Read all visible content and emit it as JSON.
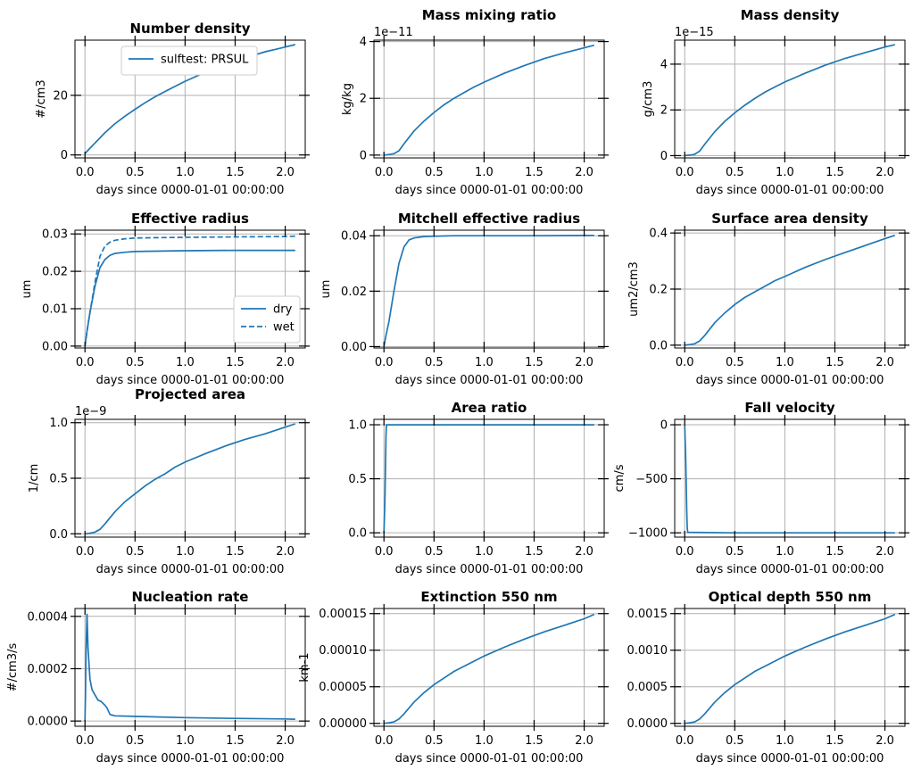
{
  "figure": {
    "line_color": "#1f77b4"
  },
  "chart_data": [
    {
      "type": "line",
      "title": "Number density",
      "xlabel": "days since 0000-01-01 00:00:00",
      "ylabel": "#/cm3",
      "xlim": [
        -0.1,
        2.2
      ],
      "ylim": [
        -1,
        38.5
      ],
      "xticks": [
        "0.0",
        "0.5",
        "1.0",
        "1.5",
        "2.0"
      ],
      "yticks": [
        0,
        20
      ],
      "ytick_labels": [
        "0",
        "20"
      ],
      "offset": "",
      "legend": {
        "placement": "top-center",
        "entries": [
          "sulftest: PRSUL"
        ]
      },
      "series": [
        {
          "name": "sulftest: PRSUL",
          "style": "solid",
          "x": [
            0,
            0.1,
            0.2,
            0.3,
            0.4,
            0.5,
            0.6,
            0.7,
            0.8,
            0.9,
            1.0,
            1.1,
            1.2,
            1.3,
            1.4,
            1.5,
            1.6,
            1.7,
            1.8,
            1.9,
            2.0,
            2.1
          ],
          "y": [
            0.5,
            4,
            7.5,
            10.5,
            13,
            15.3,
            17.5,
            19.5,
            21.3,
            23,
            24.7,
            26.2,
            27.7,
            29,
            30.3,
            31.5,
            32.6,
            33.6,
            34.6,
            35.4,
            36.2,
            37
          ]
        }
      ]
    },
    {
      "type": "line",
      "title": "Mass mixing ratio",
      "xlabel": "days since 0000-01-01 00:00:00",
      "ylabel": "kg/kg",
      "xlim": [
        -0.1,
        2.2
      ],
      "ylim": [
        -0.1,
        4.05
      ],
      "xticks": [
        "0.0",
        "0.5",
        "1.0",
        "1.5",
        "2.0"
      ],
      "yticks": [
        0,
        2,
        4
      ],
      "ytick_labels": [
        "0",
        "2",
        "4"
      ],
      "offset": "1e−11",
      "series": [
        {
          "name": "",
          "style": "solid",
          "x": [
            0,
            0.05,
            0.1,
            0.15,
            0.2,
            0.3,
            0.4,
            0.5,
            0.6,
            0.7,
            0.8,
            0.9,
            1.0,
            1.2,
            1.4,
            1.6,
            1.8,
            2.0,
            2.1
          ],
          "y": [
            0,
            0.02,
            0.05,
            0.15,
            0.4,
            0.85,
            1.2,
            1.5,
            1.77,
            2.0,
            2.2,
            2.4,
            2.57,
            2.88,
            3.15,
            3.4,
            3.6,
            3.78,
            3.87
          ]
        }
      ]
    },
    {
      "type": "line",
      "title": "Mass density",
      "xlabel": "days since 0000-01-01 00:00:00",
      "ylabel": "g/cm3",
      "xlim": [
        -0.1,
        2.2
      ],
      "ylim": [
        -0.1,
        5.05
      ],
      "xticks": [
        "0.0",
        "0.5",
        "1.0",
        "1.5",
        "2.0"
      ],
      "yticks": [
        0,
        2,
        4
      ],
      "ytick_labels": [
        "0",
        "2",
        "4"
      ],
      "offset": "1e−15",
      "series": [
        {
          "name": "",
          "style": "solid",
          "x": [
            0,
            0.05,
            0.1,
            0.15,
            0.2,
            0.3,
            0.4,
            0.5,
            0.6,
            0.7,
            0.8,
            0.9,
            1.0,
            1.2,
            1.4,
            1.6,
            1.8,
            2.0,
            2.1
          ],
          "y": [
            0,
            0.02,
            0.06,
            0.2,
            0.5,
            1.05,
            1.5,
            1.87,
            2.2,
            2.5,
            2.77,
            3.0,
            3.22,
            3.6,
            3.95,
            4.25,
            4.5,
            4.75,
            4.85
          ]
        }
      ]
    },
    {
      "type": "line",
      "title": "Effective radius",
      "xlabel": "days since 0000-01-01 00:00:00",
      "ylabel": "um",
      "xlim": [
        -0.1,
        2.2
      ],
      "ylim": [
        -0.0005,
        0.031
      ],
      "xticks": [
        "0.0",
        "0.5",
        "1.0",
        "1.5",
        "2.0"
      ],
      "yticks": [
        0,
        0.01,
        0.02,
        0.03
      ],
      "ytick_labels": [
        "0.00",
        "0.01",
        "0.02",
        "0.03"
      ],
      "offset": "",
      "legend": {
        "placement": "lower-right",
        "entries": [
          "dry",
          "wet"
        ]
      },
      "series": [
        {
          "name": "dry",
          "style": "solid",
          "x": [
            0,
            0.02,
            0.05,
            0.1,
            0.15,
            0.2,
            0.25,
            0.3,
            0.4,
            0.5,
            0.7,
            1.0,
            1.5,
            2.0,
            2.1
          ],
          "y": [
            0,
            0.004,
            0.009,
            0.016,
            0.021,
            0.0232,
            0.0243,
            0.0248,
            0.0251,
            0.0253,
            0.0254,
            0.0255,
            0.0256,
            0.0256,
            0.0256
          ]
        },
        {
          "name": "wet",
          "style": "dashed",
          "x": [
            0,
            0.02,
            0.05,
            0.1,
            0.15,
            0.2,
            0.25,
            0.3,
            0.4,
            0.5,
            0.7,
            1.0,
            1.5,
            2.0,
            2.1
          ],
          "y": [
            0,
            0.004,
            0.009,
            0.017,
            0.024,
            0.0268,
            0.0278,
            0.0283,
            0.0287,
            0.0289,
            0.029,
            0.0291,
            0.0292,
            0.0293,
            0.0294
          ]
        }
      ]
    },
    {
      "type": "line",
      "title": "Mitchell effective radius",
      "xlabel": "days since 0000-01-01 00:00:00",
      "ylabel": "um",
      "xlim": [
        -0.1,
        2.2
      ],
      "ylim": [
        -0.0005,
        0.042
      ],
      "xticks": [
        "0.0",
        "0.5",
        "1.0",
        "1.5",
        "2.0"
      ],
      "yticks": [
        0,
        0.02,
        0.04
      ],
      "ytick_labels": [
        "0.00",
        "0.02",
        "0.04"
      ],
      "offset": "",
      "series": [
        {
          "name": "",
          "style": "solid",
          "x": [
            0,
            0.02,
            0.05,
            0.1,
            0.15,
            0.2,
            0.25,
            0.3,
            0.4,
            0.5,
            0.7,
            1.0,
            1.5,
            2.0,
            2.1
          ],
          "y": [
            0,
            0.004,
            0.009,
            0.02,
            0.03,
            0.036,
            0.0385,
            0.0392,
            0.0397,
            0.0398,
            0.04,
            0.04,
            0.04,
            0.0401,
            0.0401
          ]
        }
      ]
    },
    {
      "type": "line",
      "title": "Surface area density",
      "xlabel": "days since 0000-01-01 00:00:00",
      "ylabel": "um2/cm3",
      "xlim": [
        -0.1,
        2.2
      ],
      "ylim": [
        -0.01,
        0.41
      ],
      "xticks": [
        "0.0",
        "0.5",
        "1.0",
        "1.5",
        "2.0"
      ],
      "yticks": [
        0,
        0.2,
        0.4
      ],
      "ytick_labels": [
        "0.0",
        "0.2",
        "0.4"
      ],
      "offset": "",
      "series": [
        {
          "name": "",
          "style": "solid",
          "x": [
            0,
            0.05,
            0.1,
            0.15,
            0.2,
            0.3,
            0.4,
            0.5,
            0.6,
            0.7,
            0.8,
            0.9,
            1.0,
            1.2,
            1.4,
            1.6,
            1.8,
            2.0,
            2.1
          ],
          "y": [
            0,
            0.002,
            0.005,
            0.015,
            0.035,
            0.08,
            0.115,
            0.145,
            0.17,
            0.19,
            0.21,
            0.23,
            0.245,
            0.277,
            0.305,
            0.33,
            0.355,
            0.38,
            0.392
          ]
        }
      ]
    },
    {
      "type": "line",
      "title": "Projected area",
      "xlabel": "days since 0000-01-01 00:00:00",
      "ylabel": "1/cm",
      "xlim": [
        -0.1,
        2.2
      ],
      "ylim": [
        -0.03,
        1.03
      ],
      "xticks": [
        "0.0",
        "0.5",
        "1.0",
        "1.5",
        "2.0"
      ],
      "yticks": [
        0,
        0.5,
        1.0
      ],
      "ytick_labels": [
        "0.0",
        "0.5",
        "1.0"
      ],
      "offset": "1e−9",
      "series": [
        {
          "name": "",
          "style": "solid",
          "x": [
            0,
            0.05,
            0.1,
            0.15,
            0.2,
            0.3,
            0.4,
            0.5,
            0.6,
            0.7,
            0.8,
            0.9,
            1.0,
            1.2,
            1.4,
            1.6,
            1.8,
            2.0,
            2.1
          ],
          "y": [
            0,
            0.005,
            0.015,
            0.04,
            0.09,
            0.2,
            0.29,
            0.36,
            0.43,
            0.49,
            0.54,
            0.6,
            0.645,
            0.72,
            0.79,
            0.85,
            0.9,
            0.96,
            0.99
          ]
        }
      ]
    },
    {
      "type": "line",
      "title": "Area ratio",
      "xlabel": "days since 0000-01-01 00:00:00",
      "ylabel": "",
      "xlim": [
        -0.1,
        2.2
      ],
      "ylim": [
        -0.04,
        1.05
      ],
      "xticks": [
        "0.0",
        "0.5",
        "1.0",
        "1.5",
        "2.0"
      ],
      "yticks": [
        0,
        0.5,
        1.0
      ],
      "ytick_labels": [
        "0.0",
        "0.5",
        "1.0"
      ],
      "offset": "",
      "series": [
        {
          "name": "",
          "style": "solid",
          "x": [
            0,
            0.01,
            0.02,
            0.025,
            0.05,
            0.5,
            1.0,
            1.5,
            2.0,
            2.1
          ],
          "y": [
            0,
            0.3,
            0.9,
            1.0,
            1.0,
            1.0,
            1.0,
            1.0,
            1.0,
            1.0
          ]
        }
      ]
    },
    {
      "type": "line",
      "title": "Fall velocity",
      "xlabel": "days since 0000-01-01 00:00:00",
      "ylabel": "cm/s",
      "xlim": [
        -0.1,
        2.2
      ],
      "ylim": [
        -1040,
        50
      ],
      "xticks": [
        "0.0",
        "0.5",
        "1.0",
        "1.5",
        "2.0"
      ],
      "yticks": [
        -1000,
        -500,
        0
      ],
      "ytick_labels": [
        "−1000",
        "−500",
        "0"
      ],
      "offset": "",
      "series": [
        {
          "name": "",
          "style": "solid",
          "x": [
            0,
            0.01,
            0.02,
            0.025,
            0.03,
            0.5,
            1.0,
            1.5,
            2.0,
            2.1
          ],
          "y": [
            0,
            -300,
            -800,
            -950,
            -995,
            -1000,
            -1000,
            -1000,
            -1000,
            -1000
          ]
        }
      ]
    },
    {
      "type": "line",
      "title": "Nucleation rate",
      "xlabel": "days since 0000-01-01 00:00:00",
      "ylabel": "#/cm3/s",
      "xlim": [
        -0.1,
        2.2
      ],
      "ylim": [
        -2e-05,
        0.00043
      ],
      "xticks": [
        "0.0",
        "0.5",
        "1.0",
        "1.5",
        "2.0"
      ],
      "yticks": [
        0,
        0.0002,
        0.0004
      ],
      "ytick_labels": [
        "0.0000",
        "0.0002",
        "0.0004"
      ],
      "offset": "",
      "series": [
        {
          "name": "",
          "style": "solid",
          "x": [
            0,
            0.005,
            0.01,
            0.02,
            0.03,
            0.05,
            0.07,
            0.1,
            0.13,
            0.16,
            0.2,
            0.22,
            0.25,
            0.3,
            0.5,
            1.0,
            1.5,
            2.0,
            2.1
          ],
          "y": [
            0,
            0.0001,
            0.00025,
            0.00041,
            0.00028,
            0.00016,
            0.00012,
            0.0001,
            8e-05,
            7.5e-05,
            6e-05,
            5e-05,
            2.5e-05,
            2e-05,
            1.8e-05,
            1.3e-05,
            1e-05,
            8e-06,
            7e-06
          ]
        }
      ]
    },
    {
      "type": "line",
      "title": "Extinction 550 nm",
      "xlabel": "days since 0000-01-01 00:00:00",
      "ylabel": "km-1",
      "xlim": [
        -0.1,
        2.2
      ],
      "ylim": [
        -4e-06,
        0.000157
      ],
      "xticks": [
        "0.0",
        "0.5",
        "1.0",
        "1.5",
        "2.0"
      ],
      "yticks": [
        0,
        5e-05,
        0.0001,
        0.00015
      ],
      "ytick_labels": [
        "0.00000",
        "0.00005",
        "0.00010",
        "0.00015"
      ],
      "offset": "",
      "series": [
        {
          "name": "",
          "style": "solid",
          "x": [
            0,
            0.05,
            0.1,
            0.15,
            0.2,
            0.3,
            0.4,
            0.5,
            0.6,
            0.7,
            0.8,
            0.9,
            1.0,
            1.2,
            1.4,
            1.6,
            1.8,
            2.0,
            2.1
          ],
          "y": [
            0,
            8e-07,
            2e-06,
            6e-06,
            1.3e-05,
            2.9e-05,
            4.2e-05,
            5.3e-05,
            6.2e-05,
            7.1e-05,
            7.8e-05,
            8.5e-05,
            9.2e-05,
            0.000104,
            0.000115,
            0.000125,
            0.000134,
            0.000143,
            0.000149
          ]
        }
      ]
    },
    {
      "type": "line",
      "title": "Optical depth 550 nm",
      "xlabel": "days since 0000-01-01 00:00:00",
      "ylabel": "",
      "xlim": [
        -0.1,
        2.2
      ],
      "ylim": [
        -4e-05,
        0.00157
      ],
      "xticks": [
        "0.0",
        "0.5",
        "1.0",
        "1.5",
        "2.0"
      ],
      "yticks": [
        0,
        0.0005,
        0.001,
        0.0015
      ],
      "ytick_labels": [
        "0.0000",
        "0.0005",
        "0.0010",
        "0.0015"
      ],
      "offset": "",
      "series": [
        {
          "name": "",
          "style": "solid",
          "x": [
            0,
            0.05,
            0.1,
            0.15,
            0.2,
            0.3,
            0.4,
            0.5,
            0.6,
            0.7,
            0.8,
            0.9,
            1.0,
            1.2,
            1.4,
            1.6,
            1.8,
            2.0,
            2.1
          ],
          "y": [
            0,
            8e-06,
            2e-05,
            6e-05,
            0.00013,
            0.00029,
            0.00042,
            0.00053,
            0.00062,
            0.00071,
            0.00078,
            0.00085,
            0.00092,
            0.00104,
            0.00115,
            0.00125,
            0.00134,
            0.00143,
            0.00149
          ]
        }
      ]
    }
  ]
}
